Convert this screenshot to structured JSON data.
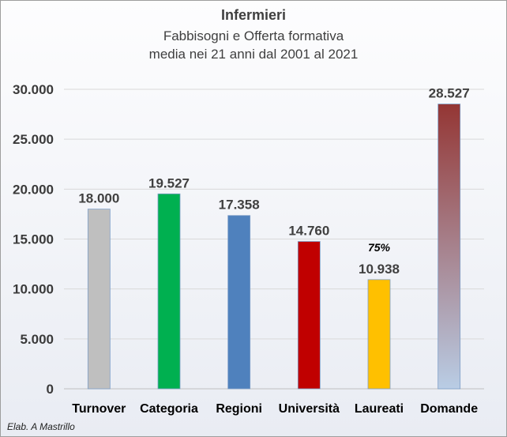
{
  "chart_data": {
    "type": "bar",
    "title": "Infermieri",
    "subtitle_lines": [
      "Fabbisogni e Offerta formativa",
      "media nei 21 anni dal 2001 al 2021"
    ],
    "categories": [
      "Turnover",
      "Categoria",
      "Regioni",
      "Università",
      "Laureati",
      "Domande"
    ],
    "values": [
      18000,
      19527,
      17358,
      14760,
      10938,
      28527
    ],
    "value_labels": [
      "18.000",
      "19.527",
      "17.358",
      "14.760",
      "10.938",
      "28.527"
    ],
    "colors": [
      "#bfbfbf",
      "#00b050",
      "#4f81bd",
      "#c00000",
      "#ffc000",
      "gradient:#943634-#b9cde5"
    ],
    "ylim": [
      0,
      30000
    ],
    "yticks": [
      0,
      5000,
      10000,
      15000,
      20000,
      25000,
      30000
    ],
    "ytick_labels": [
      "0",
      "5.000",
      "10.000",
      "15.000",
      "20.000",
      "25.000",
      "30.000"
    ],
    "grid": true,
    "annotation": {
      "category": "Laureati",
      "text": "75%"
    }
  },
  "credit": "Elab. A Mastrillo"
}
